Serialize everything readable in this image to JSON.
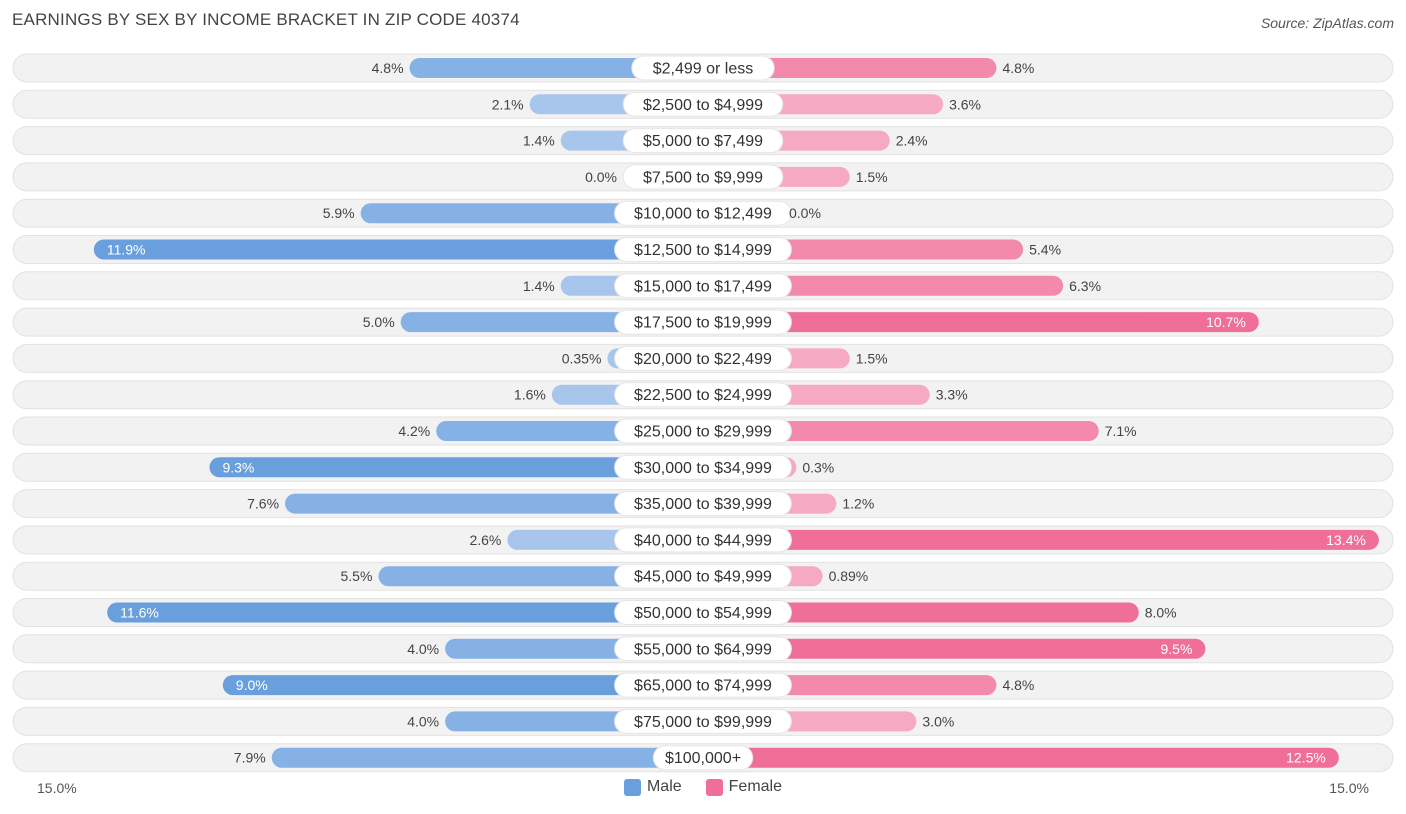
{
  "header": {
    "title": "EARNINGS BY SEX BY INCOME BRACKET IN ZIP CODE 40374",
    "source": "Source: ZipAtlas.com"
  },
  "legend": {
    "male_label": "Male",
    "female_label": "Female"
  },
  "axis": {
    "left_label": "15.0%",
    "right_label": "15.0%"
  },
  "colors": {
    "male": "#6a9fde",
    "male_light": "#a8c6ec",
    "female": "#f06f98",
    "female_light": "#f6a9c2",
    "row_bg": "#f2f2f2"
  },
  "chart_data": {
    "type": "bar",
    "orientation": "horizontal-diverging",
    "title": "EARNINGS BY SEX BY INCOME BRACKET IN ZIP CODE 40374",
    "xlim": [
      -15.0,
      15.0
    ],
    "categories": [
      "$2,499 or less",
      "$2,500 to $4,999",
      "$5,000 to $7,499",
      "$7,500 to $9,999",
      "$10,000 to $12,499",
      "$12,500 to $14,999",
      "$15,000 to $17,499",
      "$17,500 to $19,999",
      "$20,000 to $22,499",
      "$22,500 to $24,999",
      "$25,000 to $29,999",
      "$30,000 to $34,999",
      "$35,000 to $39,999",
      "$40,000 to $44,999",
      "$45,000 to $49,999",
      "$50,000 to $54,999",
      "$55,000 to $64,999",
      "$65,000 to $74,999",
      "$75,000 to $99,999",
      "$100,000+"
    ],
    "series": [
      {
        "name": "Male",
        "values": [
          4.8,
          2.1,
          1.4,
          0.0,
          5.9,
          11.9,
          1.4,
          5.0,
          0.35,
          1.6,
          4.2,
          9.3,
          7.6,
          2.6,
          5.5,
          11.6,
          4.0,
          9.0,
          4.0,
          7.9
        ],
        "labels": [
          "4.8%",
          "2.1%",
          "1.4%",
          "0.0%",
          "5.9%",
          "11.9%",
          "1.4%",
          "5.0%",
          "0.35%",
          "1.6%",
          "4.2%",
          "9.3%",
          "7.6%",
          "2.6%",
          "5.5%",
          "11.6%",
          "4.0%",
          "9.0%",
          "4.0%",
          "7.9%"
        ]
      },
      {
        "name": "Female",
        "values": [
          4.8,
          3.6,
          2.4,
          1.5,
          0.0,
          5.4,
          6.3,
          10.7,
          1.5,
          3.3,
          7.1,
          0.3,
          1.2,
          13.4,
          0.89,
          8.0,
          9.5,
          4.8,
          3.0,
          12.5
        ],
        "labels": [
          "4.8%",
          "3.6%",
          "2.4%",
          "1.5%",
          "0.0%",
          "5.4%",
          "6.3%",
          "10.7%",
          "1.5%",
          "3.3%",
          "7.1%",
          "0.3%",
          "1.2%",
          "13.4%",
          "0.89%",
          "8.0%",
          "9.5%",
          "4.8%",
          "3.0%",
          "12.5%"
        ]
      }
    ]
  }
}
